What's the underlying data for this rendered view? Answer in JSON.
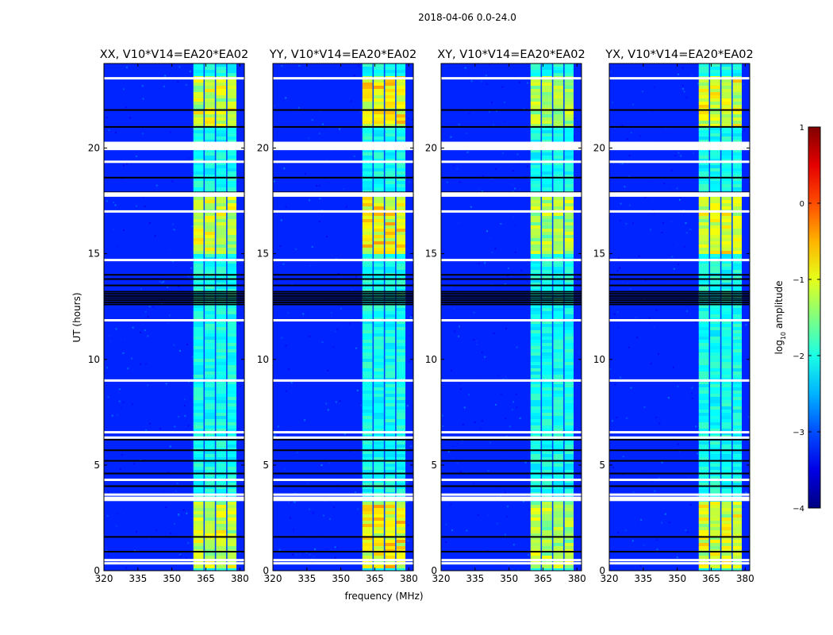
{
  "suptitle": "2018-04-06 0.0-24.0",
  "ylabel": "UT (hours)",
  "xlabel": "frequency (MHz)",
  "colorbar": {
    "label_prefix": "log",
    "label_sub": "10",
    "label_suffix": " amplitude",
    "range": [
      -4,
      1
    ],
    "ticks": [
      1,
      0,
      -1,
      -2,
      -3,
      -4
    ],
    "tick_labels": [
      "1",
      "0",
      "−1",
      "−2",
      "−3",
      "−4"
    ],
    "colormap": "jet"
  },
  "colors": {
    "background_low": "#0a2fd6",
    "flag_white": "#ffffff",
    "flag_black": "#000000"
  },
  "chart_data": {
    "type": "heatmap",
    "x_range": [
      320,
      382
    ],
    "y_range": [
      0,
      24
    ],
    "x_ticks": [
      320,
      335,
      350,
      365,
      380
    ],
    "x_tick_labels": [
      "320",
      "335",
      "350",
      "365",
      "380"
    ],
    "y_ticks": [
      0,
      5,
      10,
      15,
      20
    ],
    "y_tick_labels": [
      "0",
      "5",
      "10",
      "15",
      "20"
    ],
    "panels": [
      {
        "title": "XX, V10*V14=EA20*EA02",
        "band_strength": 0.75
      },
      {
        "title": "YY, V10*V14=EA20*EA02",
        "band_strength": 0.95
      },
      {
        "title": "XY, V10*V14=EA20*EA02",
        "band_strength": 0.65
      },
      {
        "title": "YX, V10*V14=EA20*EA02",
        "band_strength": 0.8
      }
    ],
    "signal_band_mhz": [
      359.5,
      378.5
    ],
    "signal_subbands_mhz": [
      [
        359.5,
        364
      ],
      [
        364.5,
        369
      ],
      [
        369.5,
        374
      ],
      [
        374.5,
        378.5
      ]
    ],
    "bright_intervals_ut": [
      [
        0.2,
        3.3
      ],
      [
        15.0,
        17.8
      ],
      [
        21.0,
        23.5
      ]
    ],
    "background_log_amplitude": -3.2,
    "flagged_white_ut": [
      0.35,
      0.5,
      3.35,
      3.45,
      3.6,
      4.3,
      6.3,
      6.55,
      9.0,
      11.85,
      14.7,
      17.0,
      17.75,
      17.85,
      19.35,
      20.1,
      20.2,
      23.3
    ],
    "flagged_black_ut": [
      0.9,
      1.6,
      4.0,
      4.6,
      5.2,
      5.7,
      6.2,
      12.6,
      12.7,
      12.8,
      12.9,
      13.0,
      13.1,
      13.2,
      13.5,
      13.8,
      14.0,
      17.9,
      18.6,
      21.0,
      21.8
    ]
  }
}
